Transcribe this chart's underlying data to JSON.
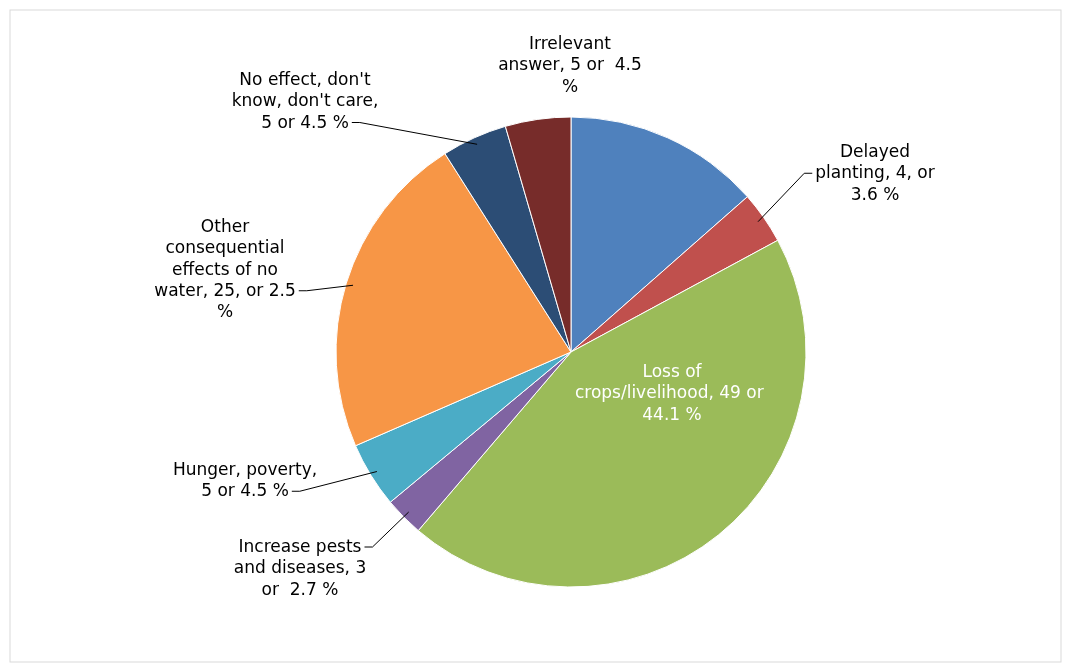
{
  "chart_data": {
    "type": "pie",
    "categories": [
      null,
      "Delayed planting, 4, or 3.6 %",
      "Loss of crops/livelihood, 49 or  44.1 %",
      "Increase pests and diseases, 3 or  2.7 %",
      "Hunger, poverty, 5 or 4.5 %",
      "Other consequential effects of no water, 25, or 2.5 %",
      "No effect, don't know, don't care, 5 or 4.5 %",
      "Irrelevant answer, 5 or  4.5 %"
    ],
    "values": [
      15,
      4,
      49,
      3,
      5,
      25,
      5,
      5
    ],
    "colors": [
      "#4f81bd",
      "#c0504d",
      "#9bbb59",
      "#8064a2",
      "#4bacc6",
      "#f79646",
      "#2c4d75",
      "#772c2a"
    ]
  }
}
